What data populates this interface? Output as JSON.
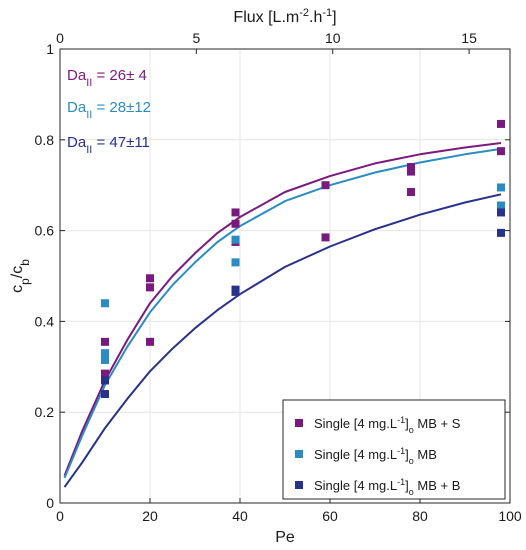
{
  "chart_data": {
    "type": "scatter",
    "x_axis": {
      "label": "Pe",
      "range": [
        0,
        100
      ],
      "ticks": [
        "0",
        "20",
        "40",
        "60",
        "80",
        "100"
      ]
    },
    "x2_axis": {
      "label_parts": {
        "base": "Flux [L.m",
        "sup1": "-2",
        "mid": ".h",
        "sup2": "-1",
        "end": "]"
      },
      "range": [
        0,
        16.5
      ],
      "ticks": [
        "0",
        "5",
        "10",
        "15"
      ]
    },
    "y_axis": {
      "label_parts": {
        "c1": "c",
        "sub1": "p",
        "slash": "/c",
        "sub2": "b"
      },
      "range": [
        0,
        1
      ],
      "ticks": [
        "0",
        "0.2",
        "0.4",
        "0.6",
        "0.8",
        "1"
      ]
    },
    "grid": true,
    "annotations": [
      {
        "main": "Da",
        "sub": "II",
        "value": " = 26± 4",
        "color": "#7b1a7e"
      },
      {
        "main": "Da",
        "sub": "II",
        "value": " = 28±12",
        "color": "#2b8cc4"
      },
      {
        "main": "Da",
        "sub": "II",
        "value": " = 47±11",
        "color": "#28318c"
      }
    ],
    "legend_position": "bottom-right",
    "series": [
      {
        "name": "Single [4 mg.L-1]o MB + S",
        "legend": {
          "pre": "Single [4 mg.L",
          "sup": "-1",
          "mid": "]",
          "sub": "o",
          "post": " MB + S"
        },
        "color": "#7b1a7e",
        "points": [
          [
            10,
            0.355
          ],
          [
            10,
            0.32
          ],
          [
            10,
            0.285
          ],
          [
            20,
            0.495
          ],
          [
            20,
            0.475
          ],
          [
            20,
            0.355
          ],
          [
            39,
            0.64
          ],
          [
            39,
            0.615
          ],
          [
            39,
            0.575
          ],
          [
            59,
            0.7
          ],
          [
            59,
            0.585
          ],
          [
            78,
            0.74
          ],
          [
            78,
            0.73
          ],
          [
            78,
            0.685
          ],
          [
            98,
            0.835
          ],
          [
            98,
            0.775
          ],
          [
            98,
            0.655
          ]
        ],
        "fit": [
          [
            1,
            0.06
          ],
          [
            5,
            0.16
          ],
          [
            10,
            0.27
          ],
          [
            15,
            0.36
          ],
          [
            20,
            0.44
          ],
          [
            25,
            0.5
          ],
          [
            30,
            0.55
          ],
          [
            35,
            0.595
          ],
          [
            40,
            0.63
          ],
          [
            50,
            0.685
          ],
          [
            60,
            0.72
          ],
          [
            70,
            0.748
          ],
          [
            80,
            0.768
          ],
          [
            90,
            0.783
          ],
          [
            98,
            0.793
          ]
        ]
      },
      {
        "name": "Single [4 mg.L-1]o MB",
        "legend": {
          "pre": "Single [4 mg.L",
          "sup": "-1",
          "mid": "]",
          "sub": "o",
          "post": " MB"
        },
        "color": "#2b8cc4",
        "points": [
          [
            10,
            0.44
          ],
          [
            10,
            0.33
          ],
          [
            10,
            0.315
          ],
          [
            39,
            0.58
          ],
          [
            39,
            0.53
          ],
          [
            98,
            0.695
          ],
          [
            98,
            0.655
          ]
        ],
        "fit": [
          [
            1,
            0.055
          ],
          [
            5,
            0.15
          ],
          [
            10,
            0.26
          ],
          [
            15,
            0.345
          ],
          [
            20,
            0.42
          ],
          [
            25,
            0.48
          ],
          [
            30,
            0.53
          ],
          [
            35,
            0.575
          ],
          [
            40,
            0.61
          ],
          [
            50,
            0.665
          ],
          [
            60,
            0.7
          ],
          [
            70,
            0.728
          ],
          [
            80,
            0.75
          ],
          [
            90,
            0.768
          ],
          [
            98,
            0.78
          ]
        ]
      },
      {
        "name": "Single [4 mg.L-1]o MB + B",
        "legend": {
          "pre": "Single [4 mg.L",
          "sup": "-1",
          "mid": "]",
          "sub": "o",
          "post": " MB + B"
        },
        "color": "#28318c",
        "points": [
          [
            10,
            0.27
          ],
          [
            10,
            0.24
          ],
          [
            39,
            0.47
          ],
          [
            39,
            0.465
          ],
          [
            98,
            0.64
          ],
          [
            98,
            0.595
          ]
        ],
        "fit": [
          [
            1,
            0.035
          ],
          [
            5,
            0.09
          ],
          [
            10,
            0.165
          ],
          [
            15,
            0.23
          ],
          [
            20,
            0.29
          ],
          [
            25,
            0.34
          ],
          [
            30,
            0.385
          ],
          [
            35,
            0.425
          ],
          [
            40,
            0.46
          ],
          [
            50,
            0.52
          ],
          [
            60,
            0.565
          ],
          [
            70,
            0.603
          ],
          [
            80,
            0.635
          ],
          [
            90,
            0.662
          ],
          [
            98,
            0.68
          ]
        ]
      }
    ]
  }
}
